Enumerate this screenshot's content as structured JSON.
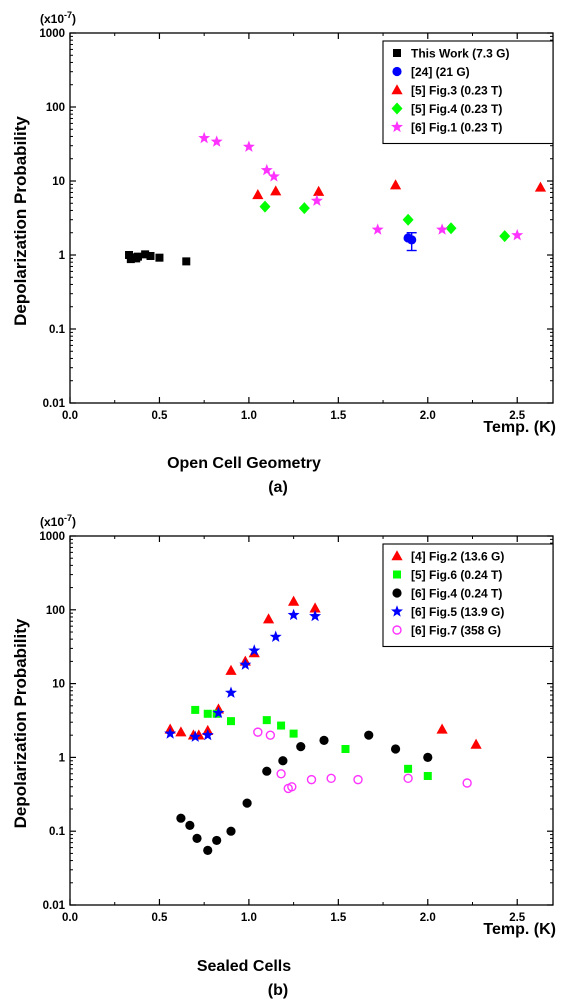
{
  "chart_data": [
    {
      "type": "scatter",
      "xlabel": "Temp. (K)",
      "ylabel": "Depolarization Probability",
      "multiplier": "(x10",
      "multiplier_exp": "-7",
      "multiplier_close": ")",
      "caption": "Open Cell Geometry",
      "panel": "(a)",
      "xlim": [
        0,
        2.7
      ],
      "ylim": [
        0.01,
        1000
      ],
      "y_scale": "log",
      "x_ticks": [
        "0.0",
        "0.5",
        "1.0",
        "1.5",
        "2.0",
        "2.5"
      ],
      "y_ticks": [
        "0.01",
        "0.1",
        "1",
        "10",
        "100",
        "1000"
      ],
      "legend_position": "top-right",
      "series": [
        {
          "name": "This Work (7.3 G)",
          "marker": "square",
          "color": "#000000",
          "points": [
            [
              0.33,
              1.0
            ],
            [
              0.34,
              0.88
            ],
            [
              0.35,
              0.93
            ],
            [
              0.37,
              0.9
            ],
            [
              0.38,
              0.95
            ],
            [
              0.42,
              1.02
            ],
            [
              0.45,
              0.97
            ],
            [
              0.5,
              0.92
            ],
            [
              0.65,
              0.82
            ]
          ]
        },
        {
          "name": "[24] (21 G)",
          "marker": "circle",
          "color": "#0000ff",
          "points": [
            [
              1.89,
              1.7
            ],
            [
              1.91,
              1.6
            ]
          ],
          "error_bars": [
            [
              1.91,
              1.15,
              2.0
            ]
          ]
        },
        {
          "name": "[5] Fig.3 (0.23 T)",
          "marker": "triangle",
          "color": "#ff0000",
          "points": [
            [
              1.05,
              6.5
            ],
            [
              1.15,
              7.3
            ],
            [
              1.39,
              7.2
            ],
            [
              1.82,
              8.8
            ],
            [
              2.63,
              8.2
            ]
          ]
        },
        {
          "name": "[5] Fig.4 (0.23 T)",
          "marker": "diamond",
          "color": "#00ff00",
          "points": [
            [
              1.09,
              4.5
            ],
            [
              1.31,
              4.3
            ],
            [
              1.89,
              3.0
            ],
            [
              2.13,
              2.3
            ],
            [
              2.43,
              1.8
            ]
          ]
        },
        {
          "name": "[6] Fig.1 (0.23 T)",
          "marker": "star",
          "color": "#ff33ff",
          "points": [
            [
              0.75,
              38
            ],
            [
              0.82,
              34
            ],
            [
              1.0,
              29
            ],
            [
              1.1,
              14
            ],
            [
              1.14,
              11.5
            ],
            [
              1.38,
              5.4
            ],
            [
              1.72,
              2.2
            ],
            [
              2.08,
              2.2
            ],
            [
              2.5,
              1.85
            ]
          ]
        }
      ]
    },
    {
      "type": "scatter",
      "xlabel": "Temp. (K)",
      "ylabel": "Depolarization Probability",
      "multiplier": "(x10",
      "multiplier_exp": "-7",
      "multiplier_close": ")",
      "caption": "Sealed Cells",
      "panel": "(b)",
      "xlim": [
        0,
        2.7
      ],
      "ylim": [
        0.01,
        1000
      ],
      "y_scale": "log",
      "x_ticks": [
        "0.0",
        "0.5",
        "1.0",
        "1.5",
        "2.0",
        "2.5"
      ],
      "y_ticks": [
        "0.01",
        "0.1",
        "1",
        "10",
        "100",
        "1000"
      ],
      "legend_position": "top-right",
      "series": [
        {
          "name": "[4] Fig.2 (13.6 G)",
          "marker": "triangle",
          "color": "#ff0000",
          "points": [
            [
              0.56,
              2.4
            ],
            [
              0.62,
              2.2
            ],
            [
              0.69,
              2.0
            ],
            [
              0.72,
              2.0
            ],
            [
              0.77,
              2.3
            ],
            [
              0.83,
              4.5
            ],
            [
              0.9,
              15
            ],
            [
              0.98,
              20
            ],
            [
              1.03,
              26
            ],
            [
              1.11,
              75
            ],
            [
              1.25,
              130
            ],
            [
              1.37,
              105
            ],
            [
              2.08,
              2.4
            ],
            [
              2.27,
              1.5
            ]
          ]
        },
        {
          "name": "[5] Fig.6 (0.24 T)",
          "marker": "square",
          "color": "#00ff00",
          "points": [
            [
              0.7,
              4.4
            ],
            [
              0.77,
              3.9
            ],
            [
              0.82,
              3.9
            ],
            [
              0.9,
              3.1
            ],
            [
              1.1,
              3.2
            ],
            [
              1.18,
              2.7
            ],
            [
              1.25,
              2.1
            ],
            [
              1.54,
              1.3
            ],
            [
              1.89,
              0.7
            ],
            [
              2.0,
              0.56
            ]
          ]
        },
        {
          "name": "[6] Fig.4 (0.24 T)",
          "marker": "circle",
          "color": "#000000",
          "points": [
            [
              0.62,
              0.15
            ],
            [
              0.67,
              0.12
            ],
            [
              0.71,
              0.08
            ],
            [
              0.77,
              0.055
            ],
            [
              0.82,
              0.075
            ],
            [
              0.9,
              0.1
            ],
            [
              0.99,
              0.24
            ],
            [
              1.1,
              0.65
            ],
            [
              1.19,
              0.9
            ],
            [
              1.29,
              1.4
            ],
            [
              1.42,
              1.7
            ],
            [
              1.67,
              2.0
            ],
            [
              1.82,
              1.3
            ],
            [
              2.0,
              1.0
            ]
          ]
        },
        {
          "name": "[6] Fig.5 (13.9 G)",
          "marker": "star",
          "color": "#0000ff",
          "points": [
            [
              0.56,
              2.1
            ],
            [
              0.7,
              1.9
            ],
            [
              0.77,
              2.0
            ],
            [
              0.83,
              4.0
            ],
            [
              0.9,
              7.5
            ],
            [
              0.98,
              18
            ],
            [
              1.03,
              28
            ],
            [
              1.15,
              43
            ],
            [
              1.25,
              85
            ],
            [
              1.37,
              82
            ]
          ]
        },
        {
          "name": "[6] Fig.7 (358 G)",
          "marker": "open-circle",
          "color": "#ff33ff",
          "points": [
            [
              1.05,
              2.2
            ],
            [
              1.12,
              2.0
            ],
            [
              1.18,
              0.6
            ],
            [
              1.22,
              0.38
            ],
            [
              1.24,
              0.4
            ],
            [
              1.35,
              0.5
            ],
            [
              1.46,
              0.52
            ],
            [
              1.61,
              0.5
            ],
            [
              1.89,
              0.52
            ],
            [
              2.22,
              0.45
            ]
          ]
        }
      ]
    }
  ]
}
